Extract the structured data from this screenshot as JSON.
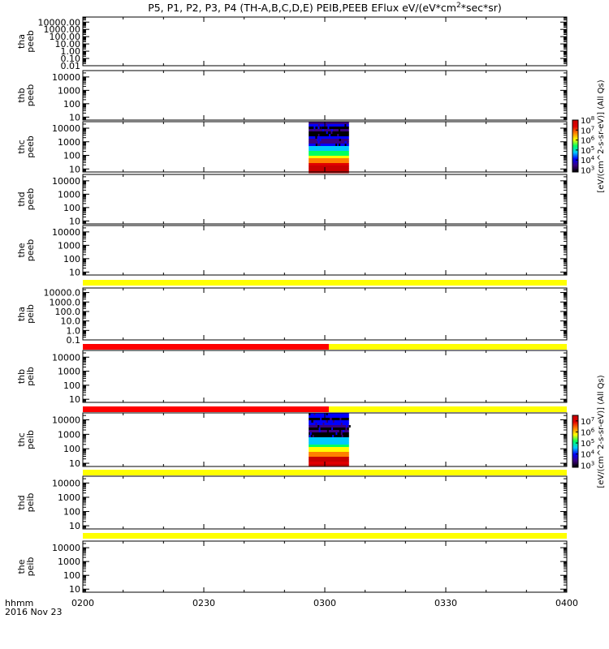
{
  "title": "P5, P1, P2, P3, P4 (TH-A,B,C,D,E) PEIB,PEEB EFlux eV/(eV*cm^2*sec*sr)",
  "title_parts": {
    "prefix": "P5, P1, P2, P3, P4 (TH-A,B,C,D,E) PEIB,PEEB EFlux eV/(eV*cm",
    "sup": "2",
    "suffix": "*sec*sr)"
  },
  "x_axis": {
    "label_line1": "hhmm",
    "label_line2": "2016 Nov 23",
    "tick_labels": [
      "0200",
      "0230",
      "0300",
      "0330",
      "0400"
    ],
    "tick_minutes": [
      0,
      30,
      60,
      90,
      120
    ],
    "range_minutes": [
      0,
      120
    ]
  },
  "colorbars": [
    {
      "label": "[eV/(cm^2-s-sr-eV)] (All Qs)",
      "base": "10",
      "exponents": [
        "8",
        "7",
        "6",
        "5",
        "4",
        "3"
      ],
      "log_range": [
        2.8,
        8.0
      ],
      "colors": [
        "#000000",
        "#3a0080",
        "#0000ff",
        "#00c8ff",
        "#00ff60",
        "#ffff00",
        "#ff8000",
        "#e00000",
        "#c80000"
      ]
    },
    {
      "label": "[eV/(cm^2-s-sr-eV)] (All Qs)",
      "base": "10",
      "exponents": [
        "7",
        "6",
        "5",
        "4",
        "3"
      ],
      "log_range": [
        2.8,
        7.5
      ],
      "colors": [
        "#000000",
        "#3a0080",
        "#0000ff",
        "#00c8ff",
        "#00ff60",
        "#ffff00",
        "#ff8000",
        "#e00000",
        "#c80000"
      ]
    }
  ],
  "chart_data": [
    {
      "type": "heatmap",
      "probe": "tha",
      "product": "peeb",
      "ylabel": "tha peeb",
      "scale": "log",
      "ylim": [
        0.01,
        50000
      ],
      "yticks": [
        0.01,
        0.1,
        1,
        10,
        100,
        1000,
        10000
      ],
      "ytick_labels": [
        "0.01",
        "0.10",
        "1.00",
        "10.00",
        "100.00",
        "1000.00",
        "10000.00"
      ],
      "data_present": false
    },
    {
      "type": "heatmap",
      "probe": "thb",
      "product": "peeb",
      "ylabel": "thb peeb",
      "scale": "log",
      "ylim": [
        6,
        30000
      ],
      "yticks": [
        10,
        100,
        1000,
        10000
      ],
      "ytick_labels": [
        "10",
        "100",
        "1000",
        "10000"
      ],
      "data_present": false
    },
    {
      "type": "heatmap",
      "probe": "thc",
      "product": "peeb",
      "ylabel": "thc peeb",
      "scale": "log",
      "ylim": [
        6,
        30000
      ],
      "yticks": [
        10,
        100,
        1000,
        10000
      ],
      "ytick_labels": [
        "10",
        "100",
        "1000",
        "10000"
      ],
      "data_present": true,
      "data_interval_minutes": [
        56,
        66
      ],
      "colorbar": 0
    },
    {
      "type": "heatmap",
      "probe": "thd",
      "product": "peeb",
      "ylabel": "thd peeb",
      "scale": "log",
      "ylim": [
        6,
        30000
      ],
      "yticks": [
        10,
        100,
        1000,
        10000
      ],
      "ytick_labels": [
        "10",
        "100",
        "1000",
        "10000"
      ],
      "data_present": false
    },
    {
      "type": "heatmap",
      "probe": "the",
      "product": "peeb",
      "ylabel": "the peeb",
      "scale": "log",
      "ylim": [
        6,
        30000
      ],
      "yticks": [
        10,
        100,
        1000,
        10000
      ],
      "ytick_labels": [
        "10",
        "100",
        "1000",
        "10000"
      ],
      "data_present": false,
      "flag_bars": [
        {
          "color": "#ffff00",
          "x": [
            0,
            120
          ]
        }
      ]
    },
    {
      "type": "heatmap",
      "probe": "tha",
      "product": "peib",
      "ylabel": "tha peib",
      "scale": "log",
      "ylim": [
        0.1,
        30000
      ],
      "yticks": [
        0.1,
        1,
        10,
        100,
        1000,
        10000
      ],
      "ytick_labels": [
        "0.1",
        "1.0",
        "10.0",
        "100.0",
        "1000.0",
        "10000.0"
      ],
      "data_present": false,
      "flag_bars": [
        {
          "color": "#ff0000",
          "x": [
            0,
            61
          ]
        },
        {
          "color": "#ffff00",
          "x": [
            61,
            120
          ]
        }
      ]
    },
    {
      "type": "heatmap",
      "probe": "thb",
      "product": "peib",
      "ylabel": "thb peib",
      "scale": "log",
      "ylim": [
        6,
        30000
      ],
      "yticks": [
        10,
        100,
        1000,
        10000
      ],
      "ytick_labels": [
        "10",
        "100",
        "1000",
        "10000"
      ],
      "data_present": false,
      "flag_bars": [
        {
          "color": "#ff0000",
          "x": [
            0,
            61
          ]
        },
        {
          "color": "#ffff00",
          "x": [
            61,
            120
          ]
        }
      ]
    },
    {
      "type": "heatmap",
      "probe": "thc",
      "product": "peib",
      "ylabel": "thc peib",
      "scale": "log",
      "ylim": [
        6,
        30000
      ],
      "yticks": [
        10,
        100,
        1000,
        10000
      ],
      "ytick_labels": [
        "10",
        "100",
        "1000",
        "10000"
      ],
      "data_present": true,
      "data_interval_minutes": [
        56,
        66
      ],
      "colorbar": 1,
      "flag_bars": [
        {
          "color": "#ffff00",
          "x": [
            0,
            120
          ]
        }
      ]
    },
    {
      "type": "heatmap",
      "probe": "thd",
      "product": "peib",
      "ylabel": "thd peib",
      "scale": "log",
      "ylim": [
        6,
        30000
      ],
      "yticks": [
        10,
        100,
        1000,
        10000
      ],
      "ytick_labels": [
        "10",
        "100",
        "1000",
        "10000"
      ],
      "data_present": false,
      "flag_bars": [
        {
          "color": "#ffff00",
          "x": [
            0,
            120
          ]
        }
      ]
    },
    {
      "type": "heatmap",
      "probe": "the",
      "product": "peib",
      "ylabel": "the peib",
      "scale": "log",
      "ylim": [
        6,
        30000
      ],
      "yticks": [
        10,
        100,
        1000,
        10000
      ],
      "ytick_labels": [
        "10",
        "100",
        "1000",
        "10000"
      ],
      "data_present": false
    }
  ]
}
